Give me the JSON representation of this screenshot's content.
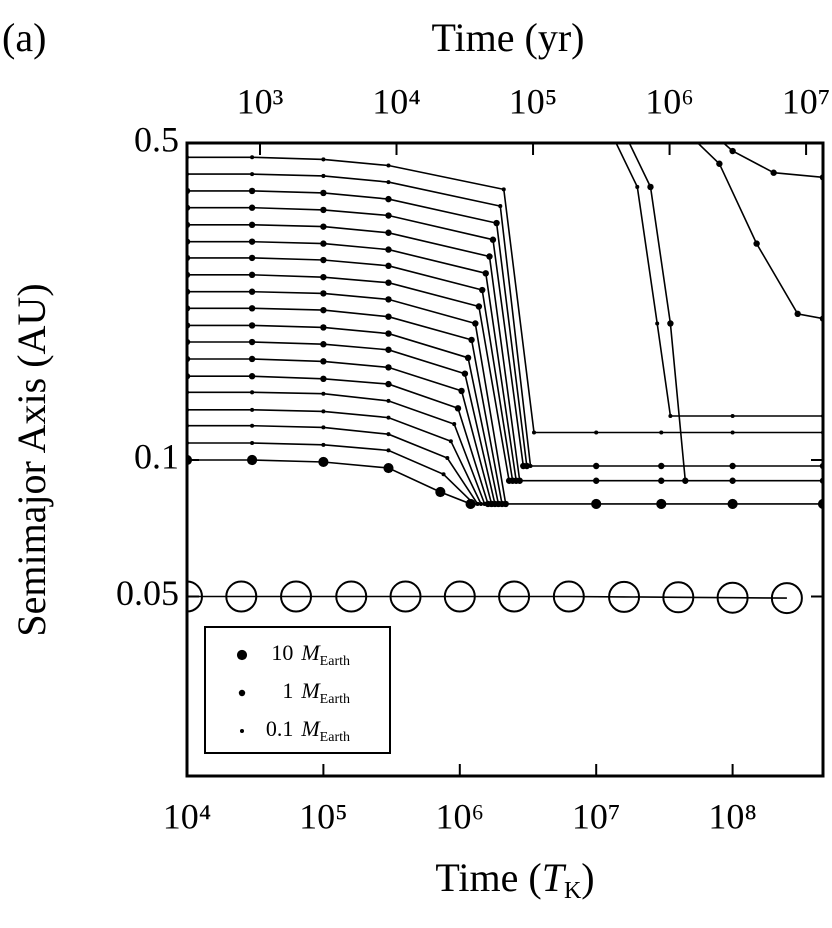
{
  "panel_label": "(a)",
  "chart_data": {
    "type": "line",
    "xlabel": {
      "text": "Time (",
      "symbol": "T",
      "subscript": "K",
      "close": ")"
    },
    "x2label": "Time (yr)",
    "ylabel": "Semimajor Axis (AU)",
    "xscale": "log",
    "yscale": "log",
    "xlim": [
      10000,
      460000000
    ],
    "xticks": [
      {
        "value": 10000,
        "label": "10⁴"
      },
      {
        "value": 100000,
        "label": "10⁵"
      },
      {
        "value": 1000000,
        "label": "10⁶"
      },
      {
        "value": 10000000,
        "label": "10⁷"
      },
      {
        "value": 100000000,
        "label": "10⁸"
      }
    ],
    "x2lim": [
      292,
      13300000
    ],
    "x2ticks": [
      {
        "value": 1000,
        "label": "10³"
      },
      {
        "value": 10000,
        "label": "10⁴"
      },
      {
        "value": 100000,
        "label": "10⁵"
      },
      {
        "value": 1000000,
        "label": "10⁶"
      },
      {
        "value": 10000000,
        "label": "10⁷"
      }
    ],
    "ylim": [
      0.0201,
      0.5
    ],
    "yticks": [
      0.05,
      0.1,
      0.5
    ],
    "color": "#000000",
    "legend": {
      "position": "lower left",
      "entries": [
        {
          "mass": 10,
          "symbol": "M",
          "subscript": "Earth"
        },
        {
          "mass": 1,
          "symbol": "M",
          "subscript": "Earth"
        },
        {
          "mass": 0.1,
          "symbol": "M",
          "subscript": "Earth"
        }
      ]
    },
    "tracks": [
      {
        "mass": 10,
        "x": [
          10000,
          30000,
          100000,
          300000,
          720000,
          1200000,
          10000000,
          30000000,
          100000000,
          460000000
        ],
        "y": [
          0.1,
          0.1,
          0.099,
          0.096,
          0.085,
          0.08,
          0.08,
          0.08,
          0.08,
          0.08
        ]
      },
      {
        "mass": 0.1,
        "x": [
          10000,
          30000,
          100000,
          300000,
          760000,
          1270000
        ],
        "y": [
          0.109,
          0.109,
          0.108,
          0.105,
          0.093,
          0.08
        ]
      },
      {
        "mass": 0.1,
        "x": [
          10000,
          30000,
          100000,
          300000,
          810000,
          1350000
        ],
        "y": [
          0.119,
          0.119,
          0.118,
          0.114,
          0.101,
          0.08
        ]
      },
      {
        "mass": 0.1,
        "x": [
          10000,
          30000,
          100000,
          300000,
          860000,
          1430000
        ],
        "y": [
          0.129,
          0.129,
          0.128,
          0.124,
          0.11,
          0.08
        ]
      },
      {
        "mass": 0.1,
        "x": [
          10000,
          30000,
          100000,
          300000,
          910000,
          1520000
        ],
        "y": [
          0.141,
          0.141,
          0.14,
          0.135,
          0.12,
          0.08
        ]
      },
      {
        "mass": 1,
        "x": [
          10000,
          30000,
          100000,
          300000,
          970000,
          1610000
        ],
        "y": [
          0.153,
          0.153,
          0.151,
          0.147,
          0.13,
          0.08
        ]
      },
      {
        "mass": 1,
        "x": [
          10000,
          30000,
          100000,
          300000,
          1030000,
          1710000
        ],
        "y": [
          0.167,
          0.167,
          0.165,
          0.16,
          0.142,
          0.08
        ]
      },
      {
        "mass": 1,
        "x": [
          10000,
          30000,
          100000,
          300000,
          1090000,
          1810000
        ],
        "y": [
          0.182,
          0.182,
          0.18,
          0.175,
          0.155,
          0.08
        ]
      },
      {
        "mass": 1,
        "x": [
          10000,
          30000,
          100000,
          300000,
          1150000,
          1920000
        ],
        "y": [
          0.198,
          0.198,
          0.196,
          0.19,
          0.168,
          0.08
        ]
      },
      {
        "mass": 1,
        "x": [
          10000,
          30000,
          100000,
          300000,
          1220000,
          2040000
        ],
        "y": [
          0.216,
          0.216,
          0.214,
          0.207,
          0.184,
          0.08
        ]
      },
      {
        "mass": 1,
        "x": [
          10000,
          30000,
          100000,
          300000,
          1300000,
          2170000
        ],
        "y": [
          0.235,
          0.235,
          0.233,
          0.226,
          0.2,
          0.08
        ]
      },
      {
        "mass": 1,
        "x": [
          10000,
          30000,
          100000,
          300000,
          1380000,
          2300000
        ],
        "y": [
          0.256,
          0.256,
          0.253,
          0.246,
          0.218,
          0.09
        ]
      },
      {
        "mass": 1,
        "x": [
          10000,
          30000,
          100000,
          300000,
          1460000,
          2440000,
          10000000,
          30000000,
          100000000,
          460000000
        ],
        "y": [
          0.279,
          0.279,
          0.276,
          0.268,
          0.237,
          0.09,
          0.09,
          0.09,
          0.09,
          0.09
        ]
      },
      {
        "mass": 1,
        "x": [
          10000,
          30000,
          100000,
          300000,
          1550000,
          2590000
        ],
        "y": [
          0.303,
          0.303,
          0.3,
          0.291,
          0.258,
          0.09
        ]
      },
      {
        "mass": 1,
        "x": [
          10000,
          30000,
          100000,
          300000,
          1650000,
          2750000
        ],
        "y": [
          0.33,
          0.33,
          0.327,
          0.317,
          0.281,
          0.09
        ]
      },
      {
        "mass": 1,
        "x": [
          10000,
          30000,
          100000,
          300000,
          1750000,
          2920000
        ],
        "y": [
          0.36,
          0.36,
          0.356,
          0.346,
          0.306,
          0.097
        ]
      },
      {
        "mass": 1,
        "x": [
          10000,
          30000,
          100000,
          300000,
          1860000,
          3100000,
          10000000,
          30000000,
          100000000,
          460000000
        ],
        "y": [
          0.392,
          0.392,
          0.388,
          0.376,
          0.333,
          0.097,
          0.097,
          0.097,
          0.097,
          0.097
        ]
      },
      {
        "mass": 0.1,
        "x": [
          10000,
          30000,
          100000,
          300000,
          1980000,
          3300000
        ],
        "y": [
          0.427,
          0.427,
          0.423,
          0.41,
          0.363,
          0.097
        ]
      },
      {
        "mass": 0.1,
        "x": [
          10000,
          30000,
          100000,
          300000,
          2100000,
          3500000,
          10000000,
          30000000,
          100000000,
          460000000
        ],
        "y": [
          0.465,
          0.465,
          0.46,
          0.446,
          0.395,
          0.115,
          0.115,
          0.115,
          0.115,
          0.115
        ]
      },
      {
        "mass": 0.1,
        "x": [
          12000000,
          20000000,
          28000000,
          35000000,
          100000000,
          460000000
        ],
        "y": [
          0.55,
          0.4,
          0.2,
          0.125,
          0.125,
          0.125
        ]
      },
      {
        "mass": 1,
        "x": [
          15000000,
          25000000,
          35000000,
          45000000
        ],
        "y": [
          0.55,
          0.4,
          0.2,
          0.09
        ]
      },
      {
        "mass": 1,
        "x": [
          40000000,
          80000000,
          150000000,
          300000000,
          460000000
        ],
        "y": [
          0.55,
          0.45,
          0.3,
          0.21,
          0.205
        ]
      },
      {
        "mass": 1,
        "x": [
          60000000,
          100000000,
          200000000,
          460000000
        ],
        "y": [
          0.55,
          0.48,
          0.43,
          0.42
        ]
      },
      {
        "marker": "open",
        "x": [
          10000,
          25000,
          63000,
          160000,
          400000,
          1000000,
          2500000,
          6300000,
          16000000,
          40000000,
          100000000,
          250000000
        ],
        "y": [
          0.05,
          0.05,
          0.05,
          0.05,
          0.05,
          0.05,
          0.05,
          0.05,
          0.0499,
          0.0498,
          0.0497,
          0.0496
        ]
      }
    ]
  }
}
